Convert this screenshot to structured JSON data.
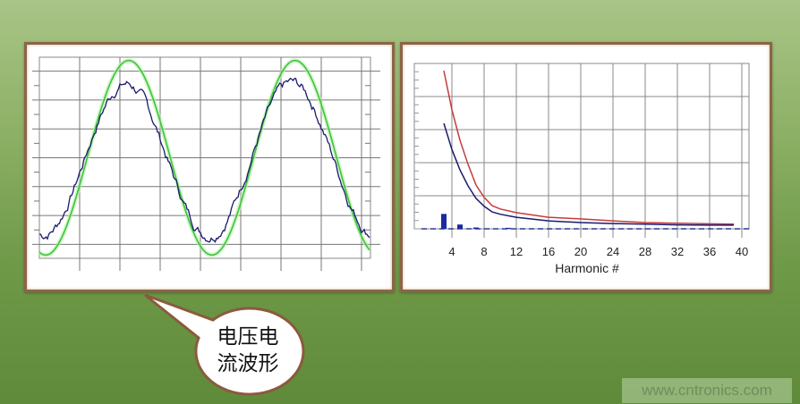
{
  "colors": {
    "voltage": "#3ec43e",
    "current": "#1a1a6e",
    "harmonic_red": "#c83a3a",
    "harmonic_blue": "#1a1a6e",
    "bars": "#1a2aa0",
    "panel_border": "#8b6548"
  },
  "callout": {
    "line1": "电压电",
    "line2": "流波形"
  },
  "watermark": "www.cntronics.com",
  "chart_data": [
    {
      "type": "line",
      "title": "",
      "xlabel": "",
      "ylabel": "",
      "grid": true,
      "series": [
        {
          "color": "#3ec43e",
          "shape": "sine",
          "amplitude_div": 3.37,
          "period_div": 4.13,
          "peak_at_div": 2.22,
          "offset_div": 0
        },
        {
          "color": "#1a1a6e",
          "shape": "sine-noisy",
          "amplitude_div": 2.62,
          "period_div": 4.13,
          "peak_at_div": 2.15,
          "offset_div": -0.05
        }
      ],
      "xlim_div": [
        0,
        8.2
      ],
      "ylim_div": [
        -3.5,
        3.5
      ]
    },
    {
      "type": "line",
      "title": "",
      "xlabel": "Harmonic #",
      "ylabel": "",
      "grid": true,
      "xticks": [
        4,
        8,
        12,
        16,
        20,
        24,
        28,
        32,
        36,
        40
      ],
      "xlim": [
        0,
        41.5
      ],
      "ylim": [
        0,
        5
      ],
      "series": [
        {
          "color": "#c83a3a",
          "x": [
            3,
            4,
            5,
            6,
            7,
            8,
            9,
            10,
            12,
            16,
            20,
            24,
            28,
            32,
            36,
            39
          ],
          "y": [
            4.78,
            3.6,
            2.68,
            1.95,
            1.32,
            0.95,
            0.7,
            0.6,
            0.49,
            0.35,
            0.3,
            0.24,
            0.19,
            0.17,
            0.15,
            0.14
          ]
        },
        {
          "color": "#1a1a6e",
          "x": [
            3,
            4,
            5,
            6,
            7,
            8,
            9,
            10,
            12,
            16,
            20,
            24,
            28,
            32,
            36,
            39
          ],
          "y": [
            3.19,
            2.4,
            1.78,
            1.3,
            0.92,
            0.68,
            0.51,
            0.44,
            0.35,
            0.24,
            0.19,
            0.16,
            0.14,
            0.12,
            0.11,
            0.11
          ]
        }
      ],
      "bars": {
        "color": "#1a2aa0",
        "x": [
          3,
          5,
          7,
          11
        ],
        "y": [
          0.45,
          0.13,
          0.04,
          0.03
        ]
      }
    }
  ]
}
